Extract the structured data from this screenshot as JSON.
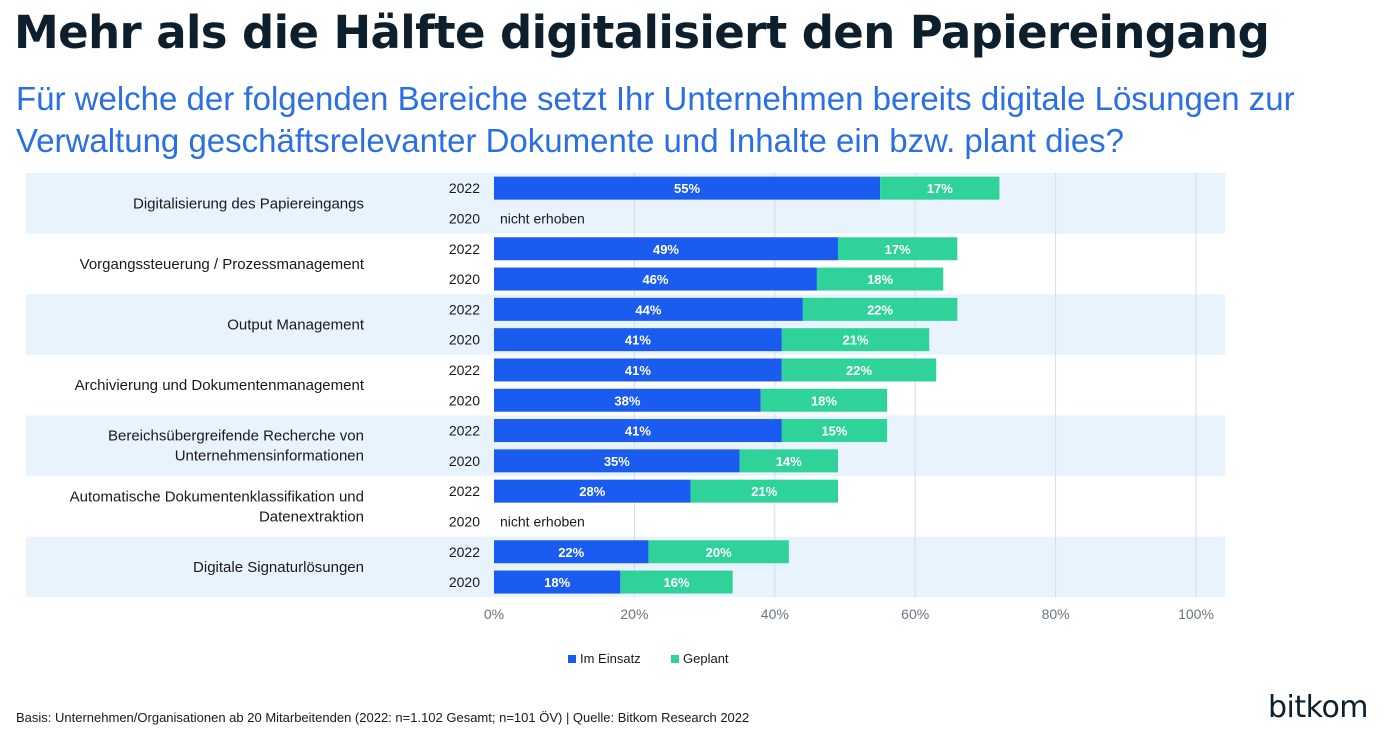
{
  "title": "Mehr als die Hälfte digitalisiert den Papiereingang",
  "subtitle": "Für welche der folgenden Bereiche setzt Ihr Unternehmen bereits digitale Lösungen zur Verwaltung geschäftsrelevanter Dokumente und Inhalte ein bzw. plant dies?",
  "footnote": "Basis: Unternehmen/Organisationen ab 20 Mitarbeitenden (2022: n=1.102 Gesamt; n=101 ÖV) | Quelle: Bitkom Research 2022",
  "logo": "bitkom",
  "colors": {
    "im_einsatz": "#1a5cf0",
    "geplant": "#2fd39a",
    "band": "#e8f3fd",
    "grid": "#d5dde5"
  },
  "chart_data": {
    "type": "bar",
    "orientation": "horizontal",
    "stacked": true,
    "xlim": [
      0,
      100
    ],
    "x_ticks": [
      "0%",
      "20%",
      "40%",
      "60%",
      "80%",
      "100%"
    ],
    "legend": {
      "position": "bottom-center",
      "entries": [
        "Im Einsatz",
        "Geplant"
      ]
    },
    "not_surveyed_label": "nicht erhoben",
    "groups": [
      {
        "label": "Digitalisierung des Papiereingangs",
        "rows": [
          {
            "year": "2022",
            "im_einsatz": 55,
            "geplant": 17
          },
          {
            "year": "2020",
            "im_einsatz": null,
            "geplant": null
          }
        ]
      },
      {
        "label": "Vorgangssteuerung / Prozessmanagement",
        "rows": [
          {
            "year": "2022",
            "im_einsatz": 49,
            "geplant": 17
          },
          {
            "year": "2020",
            "im_einsatz": 46,
            "geplant": 18
          }
        ]
      },
      {
        "label": "Output Management",
        "rows": [
          {
            "year": "2022",
            "im_einsatz": 44,
            "geplant": 22
          },
          {
            "year": "2020",
            "im_einsatz": 41,
            "geplant": 21
          }
        ]
      },
      {
        "label": "Archivierung und Dokumentenmanagement",
        "rows": [
          {
            "year": "2022",
            "im_einsatz": 41,
            "geplant": 22
          },
          {
            "year": "2020",
            "im_einsatz": 38,
            "geplant": 18
          }
        ]
      },
      {
        "label": "Bereichsübergreifende Recherche von Unternehmensinformationen",
        "rows": [
          {
            "year": "2022",
            "im_einsatz": 41,
            "geplant": 15
          },
          {
            "year": "2020",
            "im_einsatz": 35,
            "geplant": 14
          }
        ]
      },
      {
        "label": "Automatische Dokumentenklassifikation und Datenextraktion",
        "rows": [
          {
            "year": "2022",
            "im_einsatz": 28,
            "geplant": 21
          },
          {
            "year": "2020",
            "im_einsatz": null,
            "geplant": null
          }
        ]
      },
      {
        "label": "Digitale Signaturlösungen",
        "rows": [
          {
            "year": "2022",
            "im_einsatz": 22,
            "geplant": 20
          },
          {
            "year": "2020",
            "im_einsatz": 18,
            "geplant": 16
          }
        ]
      }
    ]
  }
}
